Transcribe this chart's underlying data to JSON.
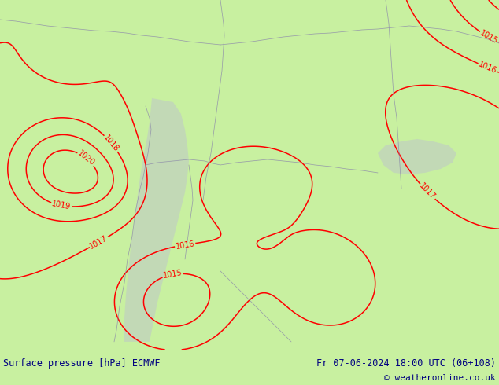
{
  "title_left": "Surface pressure [hPa] ECMWF",
  "title_right": "Fr 07-06-2024 18:00 UTC (06+108)",
  "copyright": "© weatheronline.co.uk",
  "bg_color": "#c8f0a0",
  "sea_color": "#c0d0c0",
  "contour_color": "#ff0000",
  "border_color": "#9090aa",
  "text_color_bottom": "#000080",
  "fig_width": 6.34,
  "fig_height": 4.9,
  "dpi": 100
}
